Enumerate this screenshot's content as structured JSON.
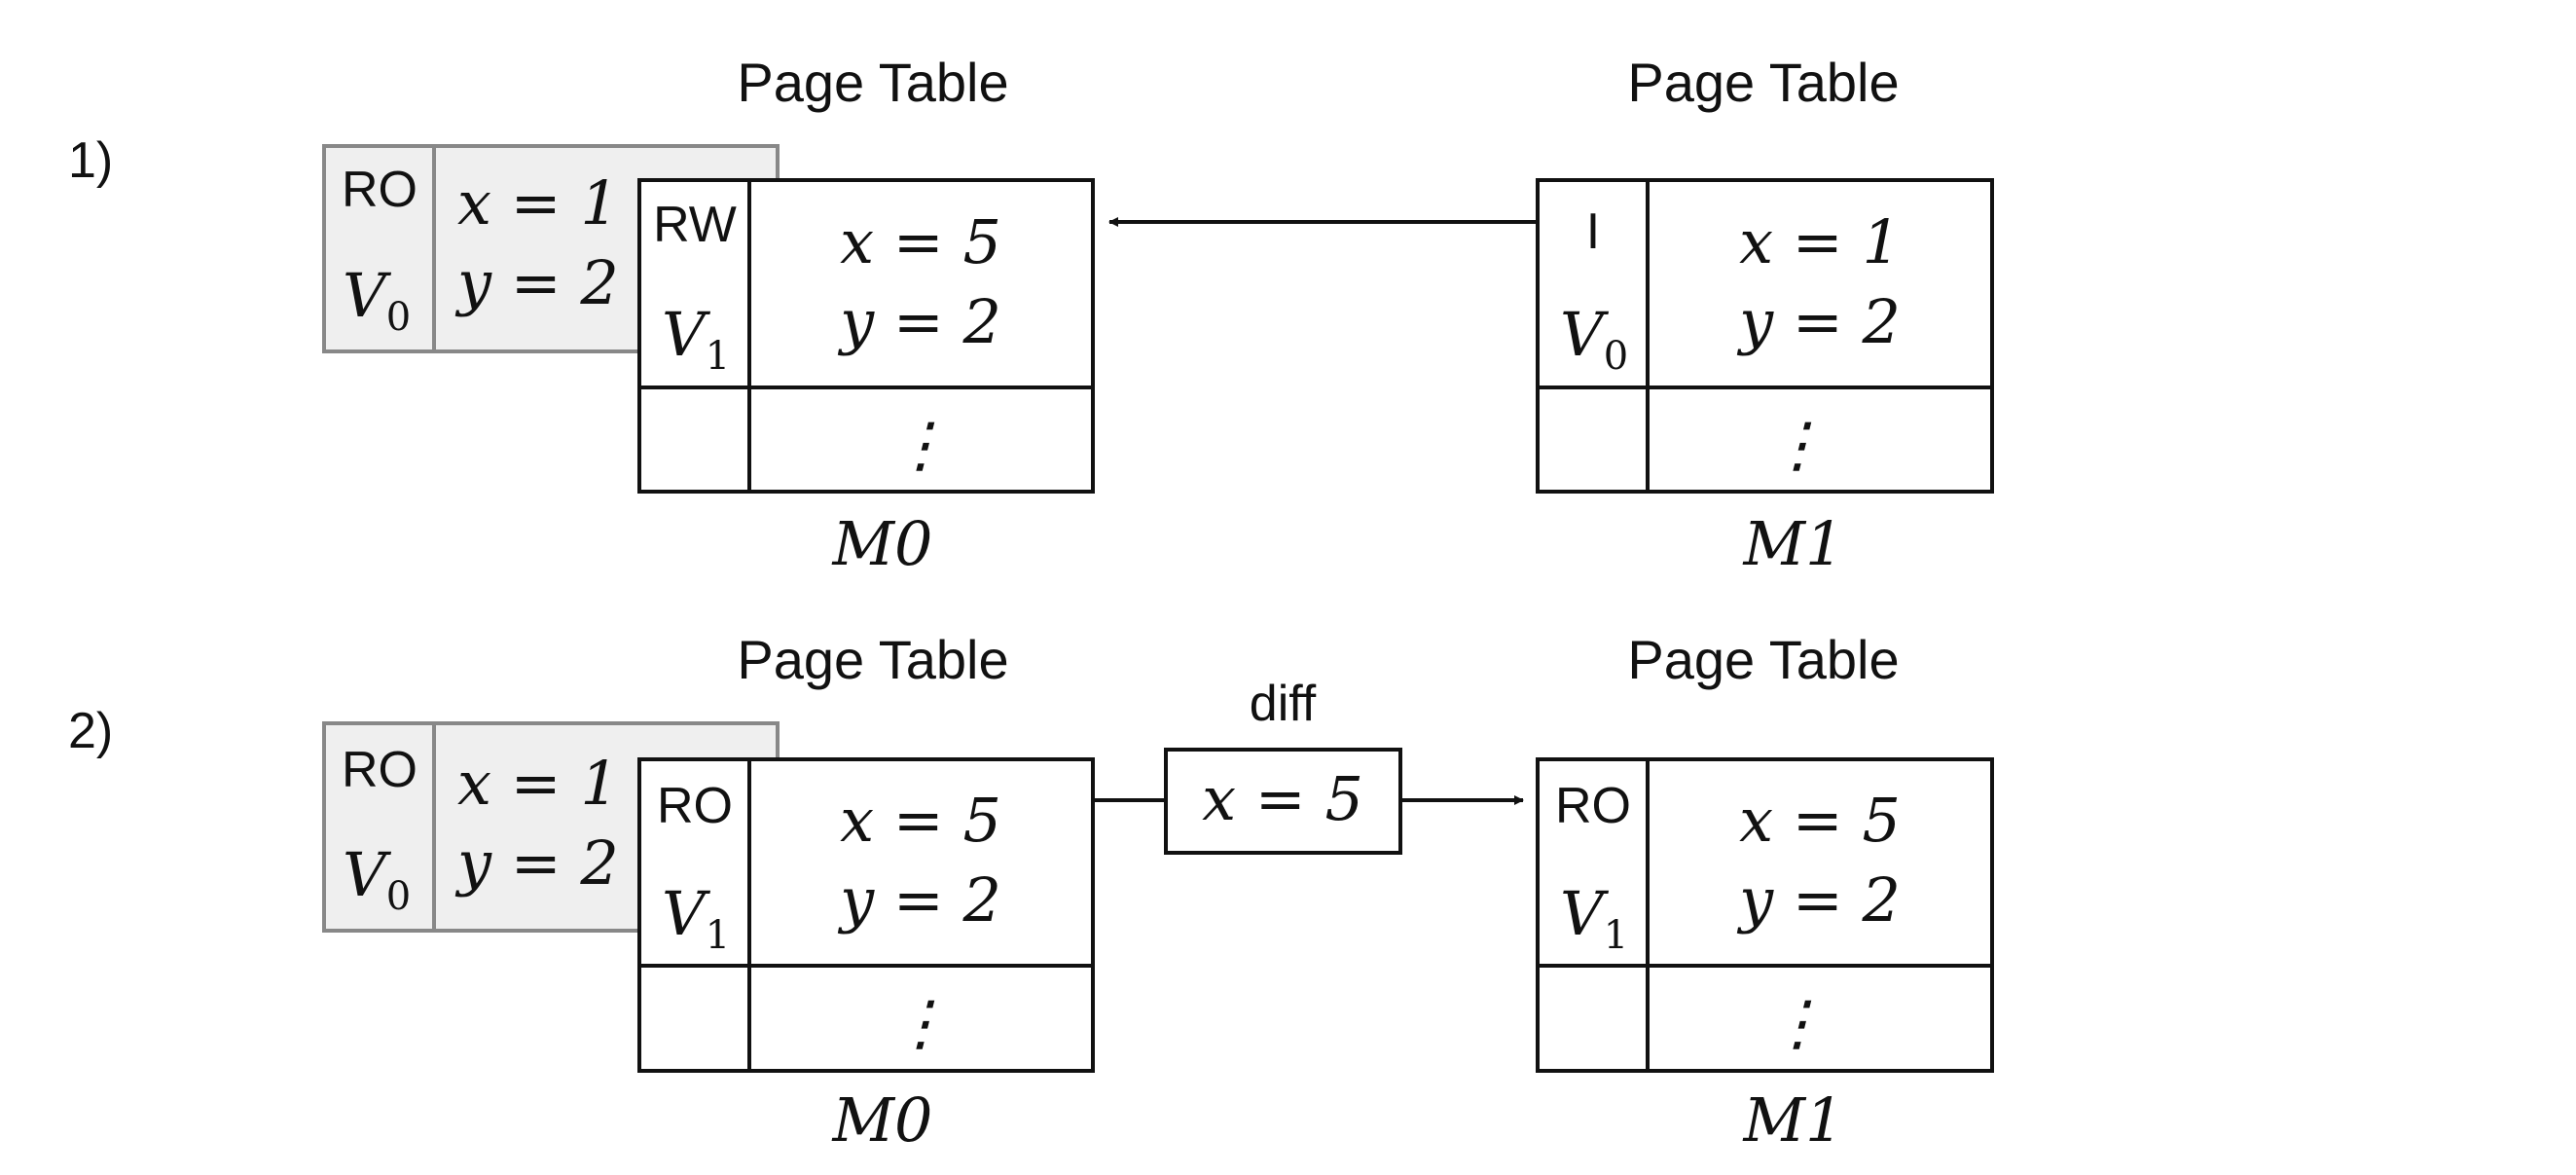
{
  "colors": {
    "stroke": "#111111",
    "ghost_fill": "#efefef",
    "ghost_stroke": "#888888",
    "background": "#ffffff"
  },
  "steps": [
    {
      "label": "1)",
      "old_page": {
        "perm": "RO",
        "version": "V",
        "version_sub": "0",
        "line1": "x = 1",
        "line2": "y = 2"
      },
      "m0": {
        "heading": "Page Table",
        "perm": "RW",
        "version": "V",
        "version_sub": "1",
        "line1": "x = 5",
        "line2": "y = 2",
        "more": "⋮",
        "name": "M0"
      },
      "m1": {
        "heading": "Page Table",
        "perm": "I",
        "version": "V",
        "version_sub": "0",
        "line1": "x = 1",
        "line2": "y = 2",
        "more": "⋮",
        "name": "M1"
      },
      "arrow": "M1 to M0"
    },
    {
      "label": "2)",
      "old_page": {
        "perm": "RO",
        "version": "V",
        "version_sub": "0",
        "line1": "x = 1",
        "line2": "y = 2"
      },
      "m0": {
        "heading": "Page Table",
        "perm": "RO",
        "version": "V",
        "version_sub": "1",
        "line1": "x = 5",
        "line2": "y = 2",
        "more": "⋮",
        "name": "M0"
      },
      "diff": {
        "label": "diff",
        "content": "x = 5"
      },
      "m1": {
        "heading": "Page Table",
        "perm": "RO",
        "version": "V",
        "version_sub": "1",
        "line1": "x = 5",
        "line2": "y = 2",
        "more": "⋮",
        "name": "M1"
      },
      "arrow": "M0 to M1"
    }
  ]
}
